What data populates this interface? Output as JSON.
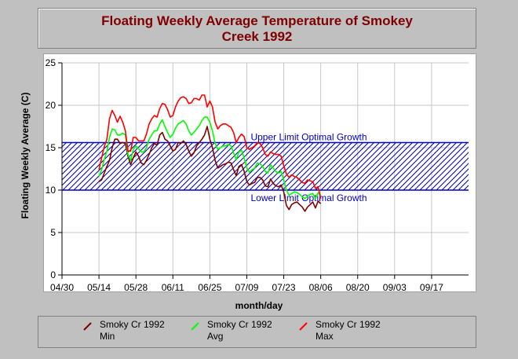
{
  "title_lines": [
    "Floating Weekly Average Temperature of Smokey",
    "Creek 1992"
  ],
  "chart_data": {
    "type": "line",
    "title": "Floating Weekly Average Temperature of Smokey Creek 1992",
    "xlabel": "month/day",
    "ylabel": "Floating Weekly Average (C)",
    "x_ticks": [
      "04/30",
      "05/14",
      "05/28",
      "06/11",
      "06/25",
      "07/09",
      "07/23",
      "08/06",
      "08/20",
      "09/03",
      "09/17"
    ],
    "ylim": [
      0,
      25
    ],
    "y_ticks": [
      0,
      5,
      10,
      15,
      20,
      25
    ],
    "grid": true,
    "legend_position": "bottom",
    "bands": [
      {
        "label_upper": "Upper Limit Optimal Growth",
        "upper": 15.6,
        "label_lower": "Lower Limit Optimal Growth",
        "lower": 10.0
      }
    ],
    "series": [
      {
        "name": "Smoky Cr 1992 Min",
        "color": "#800000",
        "points": [
          [
            14,
            11
          ],
          [
            15,
            11.2
          ],
          [
            16,
            12
          ],
          [
            17,
            12.8
          ],
          [
            18,
            13.5
          ],
          [
            19,
            15
          ],
          [
            20,
            16
          ],
          [
            21,
            16
          ],
          [
            22,
            15.5
          ],
          [
            23,
            15.6
          ],
          [
            24,
            15.5
          ],
          [
            25,
            14
          ],
          [
            26,
            13
          ],
          [
            27,
            13.8
          ],
          [
            28,
            14.5
          ],
          [
            29,
            14
          ],
          [
            30,
            13.2
          ],
          [
            31,
            13
          ],
          [
            32,
            13.5
          ],
          [
            33,
            14.2
          ],
          [
            34,
            15
          ],
          [
            35,
            15.5
          ],
          [
            36,
            15.3
          ],
          [
            37,
            16.5
          ],
          [
            38,
            16.8
          ],
          [
            39,
            16
          ],
          [
            40,
            15.8
          ],
          [
            41,
            15.2
          ],
          [
            42,
            14.6
          ],
          [
            43,
            14.8
          ],
          [
            44,
            15.6
          ],
          [
            45,
            15.5
          ],
          [
            46,
            15.8
          ],
          [
            47,
            15.4
          ],
          [
            48,
            14.6
          ],
          [
            49,
            14
          ],
          [
            50,
            14.4
          ],
          [
            51,
            15.2
          ],
          [
            52,
            15.6
          ],
          [
            53,
            16
          ],
          [
            54,
            16.5
          ],
          [
            55,
            17.5
          ],
          [
            56,
            16
          ],
          [
            57,
            15
          ],
          [
            58,
            13.5
          ],
          [
            59,
            12.6
          ],
          [
            60,
            12.8
          ],
          [
            61,
            13
          ],
          [
            62,
            13.1
          ],
          [
            63,
            13.3
          ],
          [
            64,
            13.2
          ],
          [
            65,
            12.4
          ],
          [
            66,
            11.7
          ],
          [
            67,
            12.8
          ],
          [
            68,
            13
          ],
          [
            69,
            12.2
          ],
          [
            70,
            11
          ],
          [
            71,
            10.6
          ],
          [
            72,
            10.8
          ],
          [
            73,
            10.9
          ],
          [
            74,
            11.5
          ],
          [
            75,
            11.5
          ],
          [
            76,
            11.2
          ],
          [
            77,
            10.5
          ],
          [
            78,
            10.4
          ],
          [
            79,
            11.3
          ],
          [
            80,
            10.8
          ],
          [
            81,
            10.5
          ],
          [
            82,
            10.4
          ],
          [
            83,
            10.6
          ],
          [
            84,
            9.8
          ],
          [
            85,
            8.2
          ],
          [
            86,
            7.7
          ],
          [
            87,
            8.3
          ],
          [
            88,
            8.5
          ],
          [
            89,
            8.6
          ],
          [
            90,
            8.3
          ],
          [
            91,
            8
          ],
          [
            92,
            7.5
          ],
          [
            93,
            8
          ],
          [
            94,
            8.3
          ],
          [
            95,
            8.6
          ],
          [
            96,
            7.9
          ],
          [
            97,
            8.7
          ],
          [
            98,
            8.4
          ]
        ]
      },
      {
        "name": "Smoky Cr 1992 Avg",
        "color": "#00ff00",
        "points": [
          [
            14,
            11.6
          ],
          [
            15,
            12.4
          ],
          [
            16,
            13.6
          ],
          [
            17,
            14.6
          ],
          [
            18,
            16.2
          ],
          [
            19,
            17.2
          ],
          [
            20,
            17.1
          ],
          [
            21,
            16.5
          ],
          [
            22,
            16.5
          ],
          [
            23,
            16.7
          ],
          [
            24,
            16.5
          ],
          [
            25,
            14.2
          ],
          [
            26,
            13.5
          ],
          [
            27,
            14.8
          ],
          [
            28,
            15.2
          ],
          [
            29,
            14.9
          ],
          [
            30,
            14.5
          ],
          [
            31,
            14.5
          ],
          [
            32,
            15
          ],
          [
            33,
            16
          ],
          [
            34,
            16.5
          ],
          [
            35,
            17
          ],
          [
            36,
            17
          ],
          [
            37,
            17.8
          ],
          [
            38,
            18.3
          ],
          [
            39,
            17.5
          ],
          [
            40,
            16.8
          ],
          [
            41,
            16.2
          ],
          [
            42,
            16.6
          ],
          [
            43,
            17.3
          ],
          [
            44,
            17.8
          ],
          [
            45,
            18
          ],
          [
            46,
            18.2
          ],
          [
            47,
            17.8
          ],
          [
            48,
            17
          ],
          [
            49,
            16.5
          ],
          [
            50,
            16.8
          ],
          [
            51,
            17.2
          ],
          [
            52,
            17.6
          ],
          [
            53,
            18.2
          ],
          [
            54,
            18.6
          ],
          [
            55,
            18.6
          ],
          [
            56,
            18
          ],
          [
            57,
            17
          ],
          [
            58,
            15.5
          ],
          [
            59,
            14.8
          ],
          [
            60,
            15
          ],
          [
            61,
            15.2
          ],
          [
            62,
            15.2
          ],
          [
            63,
            15.4
          ],
          [
            64,
            15.2
          ],
          [
            65,
            14.4
          ],
          [
            66,
            13.6
          ],
          [
            67,
            14.5
          ],
          [
            68,
            14.7
          ],
          [
            69,
            13.8
          ],
          [
            70,
            12.6
          ],
          [
            71,
            12.1
          ],
          [
            72,
            12.4
          ],
          [
            73,
            12.6
          ],
          [
            74,
            13.2
          ],
          [
            75,
            13.1
          ],
          [
            76,
            12.8
          ],
          [
            77,
            12.2
          ],
          [
            78,
            12
          ],
          [
            79,
            13
          ],
          [
            80,
            12.6
          ],
          [
            81,
            12.2
          ],
          [
            82,
            12
          ],
          [
            83,
            12.2
          ],
          [
            84,
            11.2
          ],
          [
            85,
            10
          ],
          [
            86,
            9.4
          ],
          [
            87,
            9.6
          ],
          [
            88,
            9.8
          ],
          [
            89,
            9.7
          ],
          [
            90,
            9.5
          ],
          [
            91,
            9.2
          ],
          [
            92,
            9
          ],
          [
            93,
            9.3
          ],
          [
            94,
            9.5
          ],
          [
            95,
            9.6
          ],
          [
            96,
            9
          ],
          [
            97,
            9.7
          ],
          [
            98,
            9.4
          ]
        ]
      },
      {
        "name": "Smoky Cr 1992 Max",
        "color": "#ff0000",
        "points": [
          [
            14,
            12.4
          ],
          [
            15,
            13.8
          ],
          [
            16,
            15.1
          ],
          [
            17,
            16
          ],
          [
            18,
            18.4
          ],
          [
            19,
            19.4
          ],
          [
            20,
            18.8
          ],
          [
            21,
            18
          ],
          [
            22,
            18.7
          ],
          [
            23,
            18
          ],
          [
            24,
            17
          ],
          [
            25,
            14.6
          ],
          [
            26,
            14.6
          ],
          [
            27,
            16.2
          ],
          [
            28,
            16.2
          ],
          [
            29,
            15.8
          ],
          [
            30,
            15.8
          ],
          [
            31,
            15.8
          ],
          [
            32,
            16.6
          ],
          [
            33,
            17.8
          ],
          [
            34,
            18.4
          ],
          [
            35,
            18.8
          ],
          [
            36,
            18.6
          ],
          [
            37,
            19.6
          ],
          [
            38,
            20.2
          ],
          [
            39,
            20.1
          ],
          [
            40,
            19.5
          ],
          [
            41,
            18.6
          ],
          [
            42,
            18.8
          ],
          [
            43,
            19.8
          ],
          [
            44,
            20.5
          ],
          [
            45,
            20.9
          ],
          [
            46,
            21
          ],
          [
            47,
            20.8
          ],
          [
            48,
            20.2
          ],
          [
            49,
            20.3
          ],
          [
            50,
            20.8
          ],
          [
            51,
            20.8
          ],
          [
            52,
            20.6
          ],
          [
            53,
            21.2
          ],
          [
            54,
            21.2
          ],
          [
            55,
            19.8
          ],
          [
            56,
            20.5
          ],
          [
            57,
            19.8
          ],
          [
            58,
            18
          ],
          [
            59,
            17.2
          ],
          [
            60,
            17.6
          ],
          [
            61,
            17.8
          ],
          [
            62,
            17.8
          ],
          [
            63,
            17.6
          ],
          [
            64,
            17.4
          ],
          [
            65,
            16.8
          ],
          [
            66,
            15.6
          ],
          [
            67,
            16.2
          ],
          [
            68,
            16.6
          ],
          [
            69,
            16.3
          ],
          [
            70,
            15
          ],
          [
            71,
            14.8
          ],
          [
            72,
            15
          ],
          [
            73,
            15.2
          ],
          [
            74,
            15.6
          ],
          [
            75,
            15.5
          ],
          [
            76,
            15
          ],
          [
            77,
            14.2
          ],
          [
            78,
            14
          ],
          [
            79,
            14.5
          ],
          [
            80,
            14.3
          ],
          [
            81,
            14.2
          ],
          [
            82,
            14.2
          ],
          [
            83,
            14
          ],
          [
            84,
            12.9
          ],
          [
            85,
            11.9
          ],
          [
            86,
            11.5
          ],
          [
            87,
            11.8
          ],
          [
            88,
            11.6
          ],
          [
            89,
            11.5
          ],
          [
            90,
            11.2
          ],
          [
            91,
            10.9
          ],
          [
            92,
            10.8
          ],
          [
            93,
            11.2
          ],
          [
            94,
            11.1
          ],
          [
            95,
            11
          ],
          [
            96,
            10.2
          ],
          [
            97,
            10.4
          ],
          [
            98,
            9
          ]
        ]
      }
    ]
  },
  "legend": [
    {
      "line1": "Smoky Cr 1992",
      "line2": "Min",
      "color": "#800000"
    },
    {
      "line1": "Smoky Cr 1992",
      "line2": "Avg",
      "color": "#00ff00"
    },
    {
      "line1": "Smoky Cr 1992",
      "line2": "Max",
      "color": "#ff0000"
    }
  ]
}
